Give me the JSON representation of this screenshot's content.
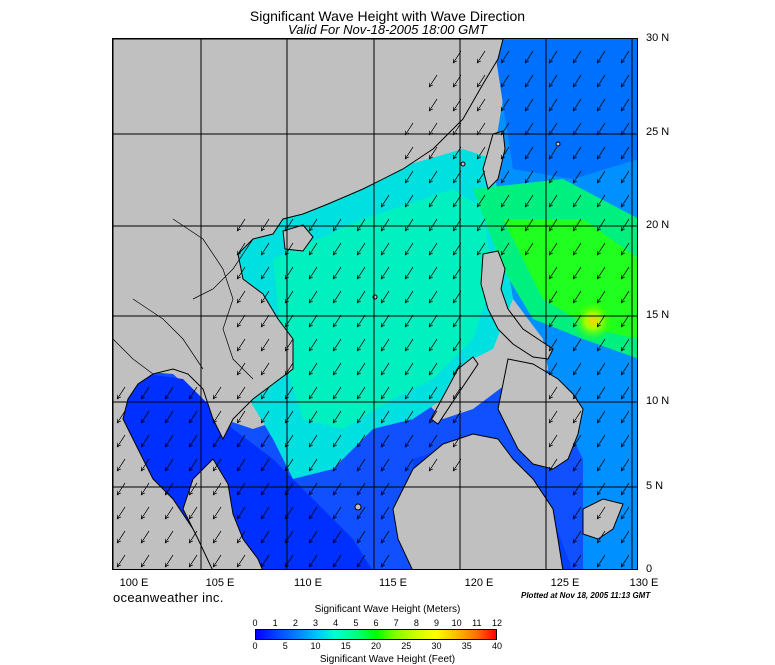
{
  "header": {
    "title": "Significant Wave Height with Wave Direction",
    "subtitle": "Valid For Nov-18-2005 18:00 GMT"
  },
  "map": {
    "lat_labels": [
      "30 N",
      "25 N",
      "20 N",
      "15 N",
      "10 N",
      "5 N",
      "0"
    ],
    "lon_labels": [
      "100 E",
      "105 E",
      "110 E",
      "115 E",
      "120 E",
      "125 E",
      "130 E"
    ],
    "lat_range": [
      0,
      30
    ],
    "lon_range": [
      100,
      130
    ],
    "grid_step_degrees": 5,
    "wave_direction": "arrows pointing southwest",
    "colors": {
      "land": "#c0c0c0",
      "coast": "#000000",
      "low_wave": "#0000ff",
      "mid_wave": "#00ffc8",
      "high_wave": "#00ff00"
    }
  },
  "footer": {
    "brand": "oceanweather inc.",
    "plotted": "Plotted at Nov 18, 2005 11:13 GMT"
  },
  "legend": {
    "meters_title": "Significant Wave Height (Meters)",
    "feet_title": "Significant Wave Height (Feet)",
    "meters_ticks": [
      "0",
      "1",
      "2",
      "3",
      "4",
      "5",
      "6",
      "7",
      "8",
      "9",
      "10",
      "11",
      "12"
    ],
    "feet_ticks": [
      "0",
      "5",
      "10",
      "15",
      "20",
      "25",
      "30",
      "35",
      "40"
    ]
  }
}
